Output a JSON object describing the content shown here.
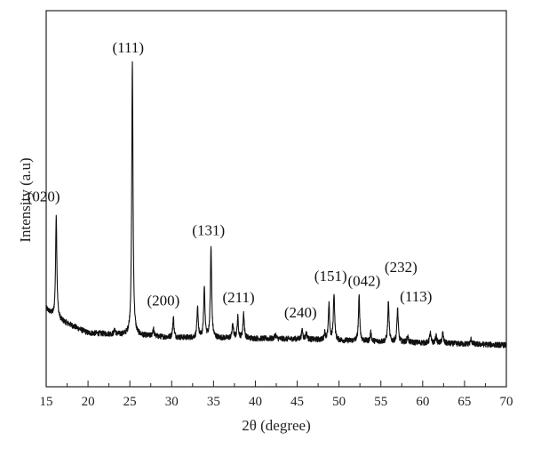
{
  "chart_data": {
    "type": "line",
    "xlabel": "2θ (degree)",
    "ylabel": "Intensity (a.u)",
    "xlim": [
      15,
      70
    ],
    "ylim": [
      0,
      1
    ],
    "x_ticks": [
      15,
      20,
      25,
      30,
      35,
      40,
      45,
      50,
      55,
      60,
      65,
      70
    ],
    "grid": false,
    "line_color": "#111111",
    "baseline": [
      [
        15,
        0.14
      ],
      [
        16,
        0.11
      ],
      [
        20,
        0.06
      ],
      [
        30,
        0.045
      ],
      [
        45,
        0.04
      ],
      [
        50,
        0.035
      ],
      [
        70,
        0.02
      ]
    ],
    "peaks": [
      {
        "x": 16.2,
        "y": 0.45,
        "label": "(020)"
      },
      {
        "x": 23.2,
        "y": 0.07
      },
      {
        "x": 25.3,
        "y": 0.95,
        "label": "(111)"
      },
      {
        "x": 27.8,
        "y": 0.075
      },
      {
        "x": 30.2,
        "y": 0.11,
        "label": "(200)"
      },
      {
        "x": 33.1,
        "y": 0.14
      },
      {
        "x": 33.9,
        "y": 0.21
      },
      {
        "x": 34.7,
        "y": 0.34,
        "label": "(131)"
      },
      {
        "x": 37.3,
        "y": 0.09
      },
      {
        "x": 37.9,
        "y": 0.11
      },
      {
        "x": 38.6,
        "y": 0.125,
        "label": "(211)"
      },
      {
        "x": 42.4,
        "y": 0.055
      },
      {
        "x": 45.6,
        "y": 0.07,
        "label": "(240)"
      },
      {
        "x": 46.1,
        "y": 0.06
      },
      {
        "x": 48.3,
        "y": 0.06
      },
      {
        "x": 48.8,
        "y": 0.15
      },
      {
        "x": 49.4,
        "y": 0.19,
        "label": "(151)"
      },
      {
        "x": 52.4,
        "y": 0.18,
        "label": "(042)"
      },
      {
        "x": 53.8,
        "y": 0.06
      },
      {
        "x": 55.9,
        "y": 0.16,
        "label": "(232)"
      },
      {
        "x": 57.0,
        "y": 0.14,
        "label": "(113)"
      },
      {
        "x": 58.2,
        "y": 0.05
      },
      {
        "x": 60.9,
        "y": 0.06
      },
      {
        "x": 61.6,
        "y": 0.05
      },
      {
        "x": 62.4,
        "y": 0.06
      },
      {
        "x": 65.8,
        "y": 0.04
      }
    ]
  }
}
